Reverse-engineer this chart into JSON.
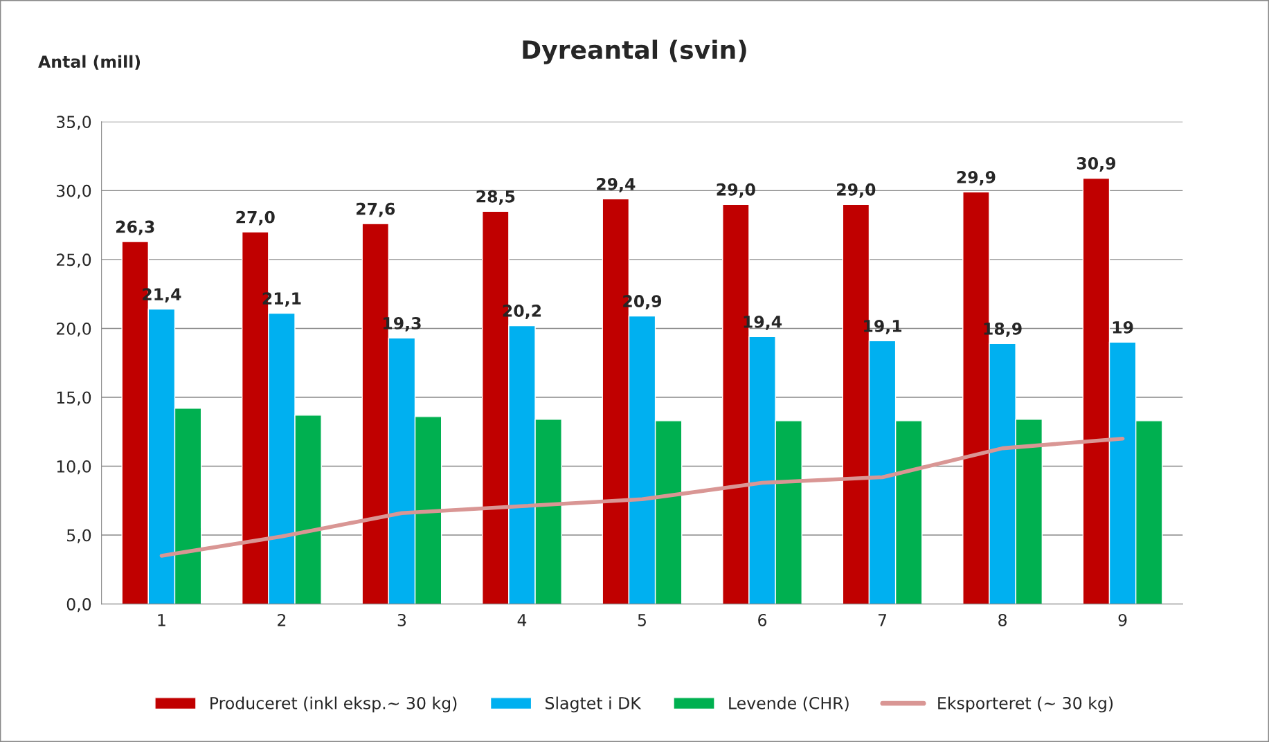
{
  "chart_data": {
    "type": "bar",
    "title": "Dyreantal (svin)",
    "ylabel": "Antal (mill)",
    "categories": [
      "1",
      "2",
      "3",
      "4",
      "5",
      "6",
      "7",
      "8",
      "9"
    ],
    "series": [
      {
        "name": "Produceret (inkl eksp.~ 30 kg)",
        "color": "#c00000",
        "values": [
          26.3,
          27.0,
          27.6,
          28.5,
          29.4,
          29.0,
          29.0,
          29.9,
          30.9
        ],
        "value_labels": [
          "26,3",
          "27,0",
          "27,6",
          "28,5",
          "29,4",
          "29,0",
          "29,0",
          "29,9",
          "30,9"
        ]
      },
      {
        "name": "Slagtet i DK",
        "color": "#00b0f0",
        "values": [
          21.4,
          21.1,
          19.3,
          20.2,
          20.9,
          19.4,
          19.1,
          18.9,
          19.0
        ],
        "value_labels": [
          "21,4",
          "21,1",
          "19,3",
          "20,2",
          "20,9",
          "19,4",
          "19,1",
          "18,9",
          "19"
        ]
      },
      {
        "name": "Levende (CHR)",
        "color": "#00b050",
        "values": [
          14.2,
          13.7,
          13.6,
          13.4,
          13.3,
          13.3,
          13.3,
          13.4,
          13.3
        ]
      },
      {
        "name": "Eksporteret (~ 30 kg)",
        "type": "line",
        "color": "#d99694",
        "values": [
          3.5,
          4.9,
          6.6,
          7.1,
          7.6,
          8.8,
          9.2,
          11.3,
          12.0
        ]
      }
    ],
    "ylim": [
      0,
      35
    ],
    "yticks": [
      {
        "value": 0,
        "label": "0,0"
      },
      {
        "value": 5,
        "label": "5,0"
      },
      {
        "value": 10,
        "label": "10,0"
      },
      {
        "value": 15,
        "label": "15,0"
      },
      {
        "value": 20,
        "label": "20,0"
      },
      {
        "value": 25,
        "label": "25,0"
      },
      {
        "value": 30,
        "label": "30,0"
      },
      {
        "value": 35,
        "label": "35,0"
      }
    ],
    "grid": "y",
    "legend": "bottom",
    "line_style": "solid",
    "marker": "none"
  }
}
